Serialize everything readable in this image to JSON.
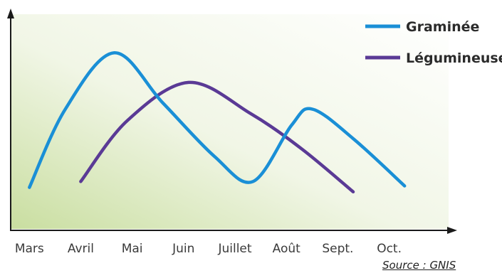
{
  "chart_data": {
    "type": "line",
    "categories": [
      "Mars",
      "Avril",
      "Mai",
      "Juin",
      "Juillet",
      "Août",
      "Sept.",
      "Oct."
    ],
    "series": [
      {
        "name": "Graminée",
        "color": "#1a8fd6",
        "points": [
          [
            0,
            0.05
          ],
          [
            0.7,
            0.58
          ],
          [
            1.65,
            0.96
          ],
          [
            2.6,
            0.62
          ],
          [
            3.6,
            0.26
          ],
          [
            4.35,
            0.09
          ],
          [
            5.1,
            0.47
          ],
          [
            5.5,
            0.58
          ],
          [
            6.3,
            0.38
          ],
          [
            7.3,
            0.06
          ]
        ]
      },
      {
        "name": "Légumineuse",
        "color": "#5a3a95",
        "points": [
          [
            1,
            0.09
          ],
          [
            1.9,
            0.5
          ],
          [
            3.1,
            0.76
          ],
          [
            4.3,
            0.55
          ],
          [
            5.3,
            0.31
          ],
          [
            6.3,
            0.02
          ]
        ]
      }
    ],
    "ylim": [
      0,
      1
    ],
    "xlim": [
      -0.35,
      8.35
    ]
  },
  "source": "Source : GNIS"
}
